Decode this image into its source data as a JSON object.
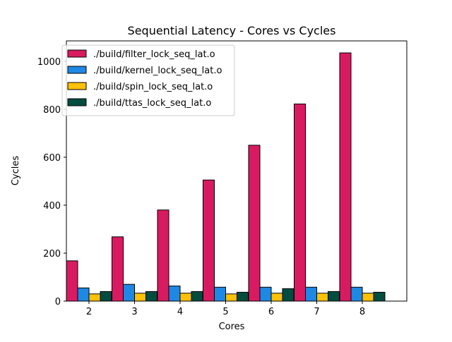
{
  "chart_data": {
    "type": "bar",
    "title": "Sequential Latency - Cores vs Cycles",
    "xlabel": "Cores",
    "ylabel": "Cycles",
    "categories": [
      "2",
      "3",
      "4",
      "5",
      "6",
      "7",
      "8"
    ],
    "ylim": [
      0,
      1085
    ],
    "yticks": [
      0,
      200,
      400,
      600,
      800,
      1000
    ],
    "legend_position": "top-left",
    "grid": false,
    "series": [
      {
        "name": "./build/filter_lock_seq_lat.o",
        "color": "#d81b60",
        "values": [
          168,
          268,
          380,
          505,
          650,
          822,
          1035
        ]
      },
      {
        "name": "./build/kernel_lock_seq_lat.o",
        "color": "#1e88e5",
        "values": [
          55,
          70,
          63,
          58,
          58,
          58,
          58
        ]
      },
      {
        "name": "./build/spin_lock_seq_lat.o",
        "color": "#ffc107",
        "values": [
          30,
          33,
          33,
          30,
          33,
          33,
          33
        ]
      },
      {
        "name": "./build/ttas_lock_seq_lat.o",
        "color": "#004d40",
        "values": [
          40,
          40,
          40,
          37,
          52,
          40,
          37
        ]
      }
    ]
  }
}
